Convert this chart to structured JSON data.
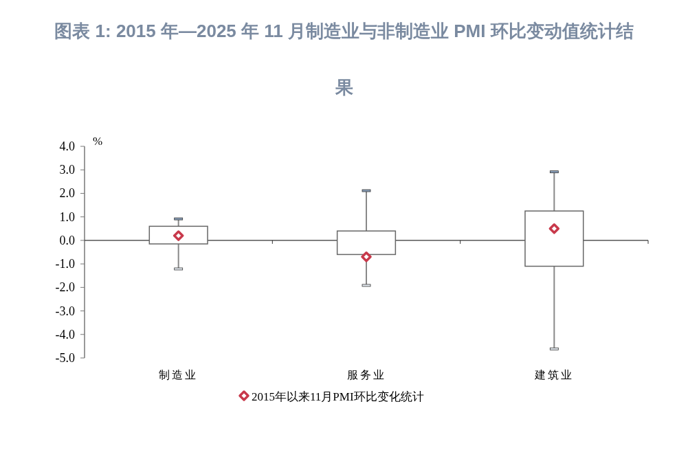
{
  "chart_data": {
    "type": "box",
    "title": "图表 1:    2015 年—2025 年 11 月制造业与非制造业 PMI 环比变动值统计结果",
    "ylabel": "%",
    "categories": [
      "制造业",
      "服务业",
      "建筑业"
    ],
    "boxes": [
      {
        "low": -1.2,
        "q1": -0.15,
        "q3": 0.6,
        "high": 0.9
      },
      {
        "low": -1.9,
        "q1": -0.6,
        "q3": 0.4,
        "high": 2.1
      },
      {
        "low": -4.6,
        "q1": -1.1,
        "q3": 1.25,
        "high": 2.9
      }
    ],
    "series": [
      {
        "name": "2015年以来11月PMI环比变化统计",
        "type": "scatter",
        "color": "#c8394b",
        "x": [
          "制造业",
          "服务业",
          "建筑业"
        ],
        "values": [
          0.2,
          -0.7,
          0.5
        ]
      }
    ],
    "ylim": [
      -5,
      4
    ],
    "yticks": [
      {
        "value": -5,
        "label": "-5.0"
      },
      {
        "value": -4,
        "label": "-4.0"
      },
      {
        "value": -3,
        "label": "-3.0"
      },
      {
        "value": -2,
        "label": "-2.0"
      },
      {
        "value": -1,
        "label": "-1.0"
      },
      {
        "value": 0,
        "label": "0.0"
      },
      {
        "value": 1,
        "label": "1.0"
      },
      {
        "value": 2,
        "label": "2.0"
      },
      {
        "value": 3,
        "label": "3.0"
      },
      {
        "value": 4,
        "label": "4.0"
      }
    ],
    "marker": "diamond",
    "legend": "bottom"
  }
}
